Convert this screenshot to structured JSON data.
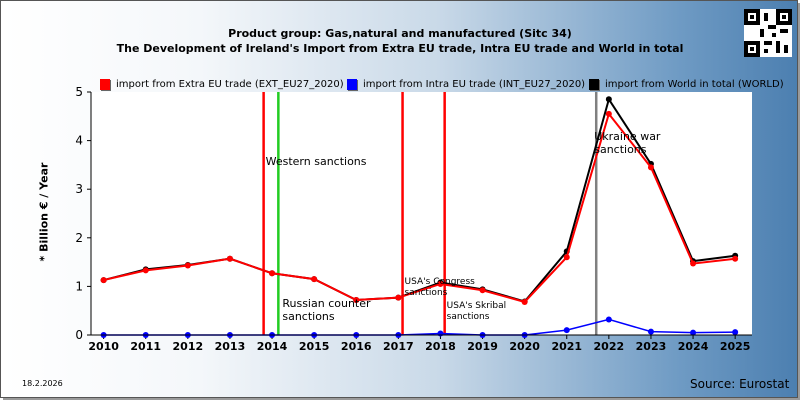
{
  "header": {
    "title_line1": "Product group: Gas,natural and manufactured (Sitc 34)",
    "title_line2": "The Development of Ireland's Import from Extra EU trade, Intra EU trade and World in total"
  },
  "footer": {
    "date": "18.2.2026",
    "source": "Source: Eurostat"
  },
  "colors": {
    "extra": "#ff0000",
    "intra": "#0000ff",
    "world": "#000000",
    "sanction_red": "#ff0000",
    "sanction_green": "#22cc22",
    "sanction_gray": "#808080"
  },
  "chart_data": {
    "type": "line",
    "ylabel": "* Billion € / Year",
    "ylim": [
      0,
      5
    ],
    "yticks": [
      "0",
      "1",
      "2",
      "3",
      "4",
      "5"
    ],
    "xlim": [
      2009.7,
      2025.4
    ],
    "categories": [
      "2010",
      "2011",
      "2012",
      "2013",
      "2014",
      "2015",
      "2016",
      "2017",
      "2018",
      "2019",
      "2020",
      "2021",
      "2022",
      "2023",
      "2024",
      "2025"
    ],
    "series": [
      {
        "name": "import from Extra EU trade (EXT_EU27_2020)",
        "color": "#ff0000",
        "values": [
          1.13,
          1.33,
          1.43,
          1.57,
          1.27,
          1.15,
          0.72,
          0.77,
          1.05,
          0.92,
          0.68,
          1.6,
          4.55,
          3.45,
          1.47,
          1.57
        ]
      },
      {
        "name": "import from Intra EU trade (INT_EU27_2020)",
        "color": "#0000ff",
        "values": [
          0.0,
          0.0,
          0.0,
          0.0,
          0.0,
          0.0,
          0.0,
          0.0,
          0.03,
          0.0,
          0.0,
          0.1,
          0.32,
          0.07,
          0.05,
          0.06
        ]
      },
      {
        "name": "import from World in total (WORLD)",
        "color": "#000000",
        "values": [
          1.13,
          1.35,
          1.44,
          1.57,
          1.27,
          1.15,
          0.72,
          0.77,
          1.08,
          0.94,
          0.69,
          1.72,
          4.85,
          3.52,
          1.52,
          1.63
        ]
      }
    ],
    "events": [
      {
        "x": 2013.8,
        "color": "#ff0000",
        "label": "Western sanctions"
      },
      {
        "x": 2014.15,
        "color": "#22cc22",
        "label": "Russian counter sanctions"
      },
      {
        "x": 2017.1,
        "color": "#ff0000",
        "label": "USA's Congress sanctions"
      },
      {
        "x": 2018.1,
        "color": "#ff0000",
        "label": "USA's Skribal sanctions"
      },
      {
        "x": 2021.7,
        "color": "#808080",
        "label": "Ukraine war sanctions"
      }
    ]
  }
}
